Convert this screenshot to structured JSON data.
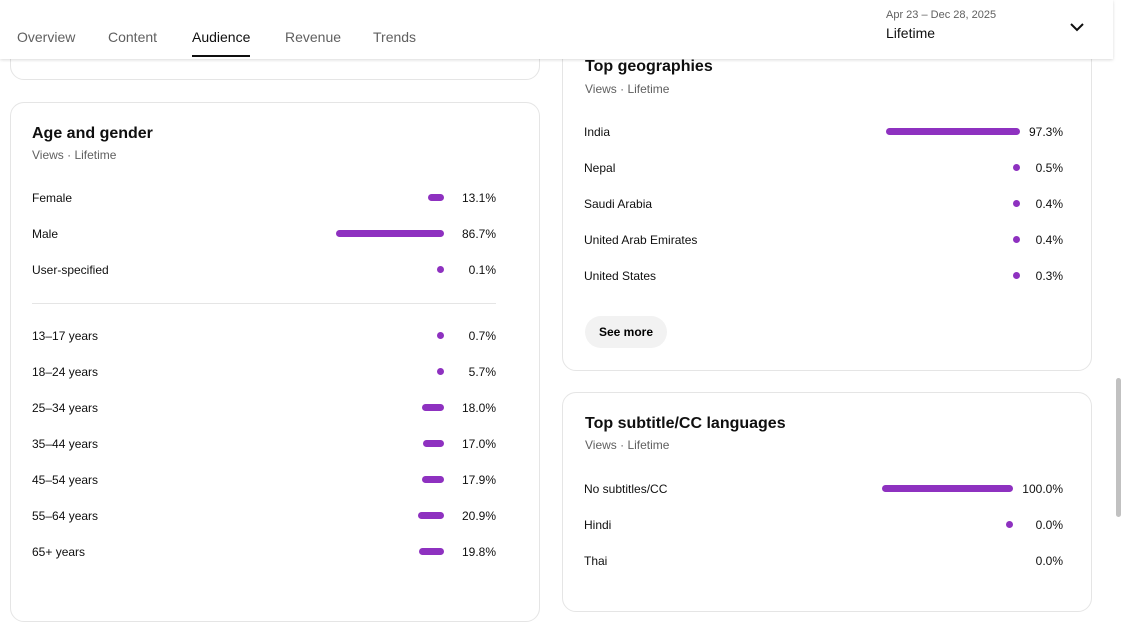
{
  "tabs": [
    {
      "label": "Overview"
    },
    {
      "label": "Content"
    },
    {
      "label": "Audience",
      "active": true
    },
    {
      "label": "Revenue"
    },
    {
      "label": "Trends"
    }
  ],
  "date_range": {
    "dates": "Apr 23 – Dec 28, 2025",
    "label": "Lifetime",
    "icon": "chevron-down-icon"
  },
  "accent": "#8e31c0",
  "age_gender": {
    "title": "Age and gender",
    "subtitle": "Views · Lifetime",
    "gender": [
      {
        "label": "Female",
        "value": 13.1,
        "text": "13.1%"
      },
      {
        "label": "Male",
        "value": 86.7,
        "text": "86.7%"
      },
      {
        "label": "User-specified",
        "value": 0.1,
        "text": "0.1%"
      }
    ],
    "age": [
      {
        "label": "13–17 years",
        "value": 0.7,
        "text": "0.7%"
      },
      {
        "label": "18–24 years",
        "value": 5.7,
        "text": "5.7%"
      },
      {
        "label": "25–34 years",
        "value": 18.0,
        "text": "18.0%"
      },
      {
        "label": "35–44 years",
        "value": 17.0,
        "text": "17.0%"
      },
      {
        "label": "45–54 years",
        "value": 17.9,
        "text": "17.9%"
      },
      {
        "label": "55–64 years",
        "value": 20.9,
        "text": "20.9%"
      },
      {
        "label": "65+ years",
        "value": 19.8,
        "text": "19.8%"
      }
    ]
  },
  "geographies": {
    "title": "Top geographies",
    "subtitle": "Views · Lifetime",
    "see_more": "See more",
    "items": [
      {
        "label": "India",
        "value": 97.3,
        "text": "97.3%"
      },
      {
        "label": "Nepal",
        "value": 0.5,
        "text": "0.5%"
      },
      {
        "label": "Saudi Arabia",
        "value": 0.4,
        "text": "0.4%"
      },
      {
        "label": "United Arab Emirates",
        "value": 0.4,
        "text": "0.4%"
      },
      {
        "label": "United States",
        "value": 0.3,
        "text": "0.3%"
      }
    ]
  },
  "subtitles": {
    "title": "Top subtitle/CC languages",
    "subtitle": "Views · Lifetime",
    "items": [
      {
        "label": "No subtitles/CC",
        "value": 100.0,
        "text": "100.0%"
      },
      {
        "label": "Hindi",
        "value": 0.0,
        "text": "0.0%",
        "dot": true
      },
      {
        "label": "Thai",
        "value": 0.0,
        "text": "0.0%",
        "dot": false
      }
    ]
  }
}
